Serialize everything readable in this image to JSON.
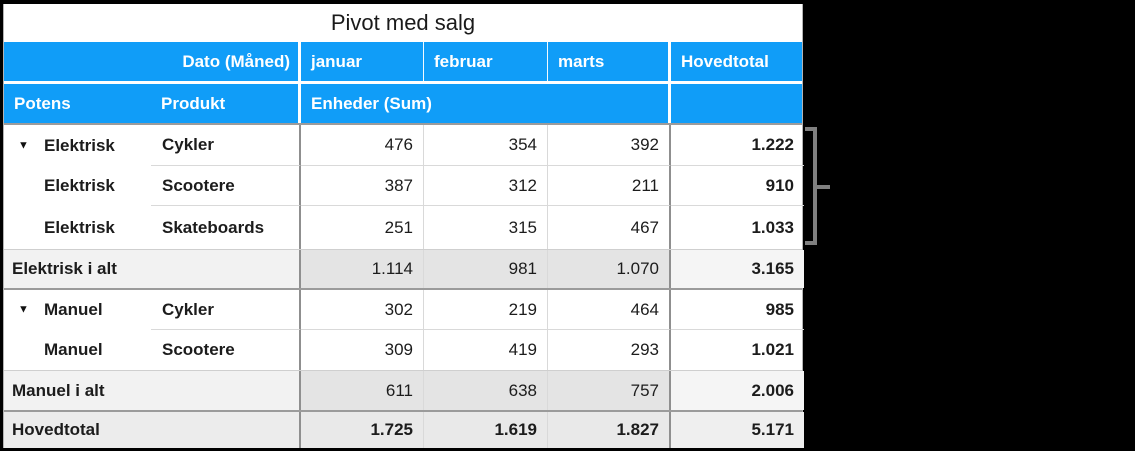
{
  "pivot_table": {
    "title": "Pivot med salg",
    "header": {
      "dato_label": "Dato (Måned)",
      "months": [
        "januar",
        "februar",
        "marts"
      ],
      "grand_total_label": "Hovedtotal",
      "potens_label": "Potens",
      "produkt_label": "Produkt",
      "values_label": "Enheder (Sum)"
    },
    "icons": {
      "disclosure_triangle": "▼"
    },
    "rows": [
      {
        "type": "detail",
        "potens": "Elektrisk",
        "produkt": "Cykler",
        "jan": "476",
        "feb": "354",
        "mar": "392",
        "total": "1.222"
      },
      {
        "type": "detail",
        "potens": "Elektrisk",
        "produkt": "Scootere",
        "jan": "387",
        "feb": "312",
        "mar": "211",
        "total": "910"
      },
      {
        "type": "detail",
        "potens": "Elektrisk",
        "produkt": "Skateboards",
        "jan": "251",
        "feb": "315",
        "mar": "467",
        "total": "1.033"
      },
      {
        "type": "subtotal",
        "label": "Elektrisk i alt",
        "jan": "1.114",
        "feb": "981",
        "mar": "1.070",
        "total": "3.165"
      },
      {
        "type": "detail",
        "potens": "Manuel",
        "produkt": "Cykler",
        "jan": "302",
        "feb": "219",
        "mar": "464",
        "total": "985"
      },
      {
        "type": "detail",
        "potens": "Manuel",
        "produkt": "Scootere",
        "jan": "309",
        "feb": "419",
        "mar": "293",
        "total": "1.021"
      },
      {
        "type": "subtotal",
        "label": "Manuel i alt",
        "jan": "611",
        "feb": "638",
        "mar": "757",
        "total": "2.006"
      },
      {
        "type": "grandtotal",
        "label": "Hovedtotal",
        "jan": "1.725",
        "feb": "1.619",
        "mar": "1.827",
        "total": "5.171"
      }
    ],
    "colors": {
      "header_blue": "#109DF8",
      "subtotal_month_bg": "#e4e4e4",
      "subtotal_label_bg": "#f2f2f2",
      "grand_total_bg": "#ececec",
      "grid_dark_line": "#8f8f8f",
      "grid_light_line": "#d9d9d9",
      "bracket_gray": "#808080",
      "background": "#000000"
    }
  }
}
